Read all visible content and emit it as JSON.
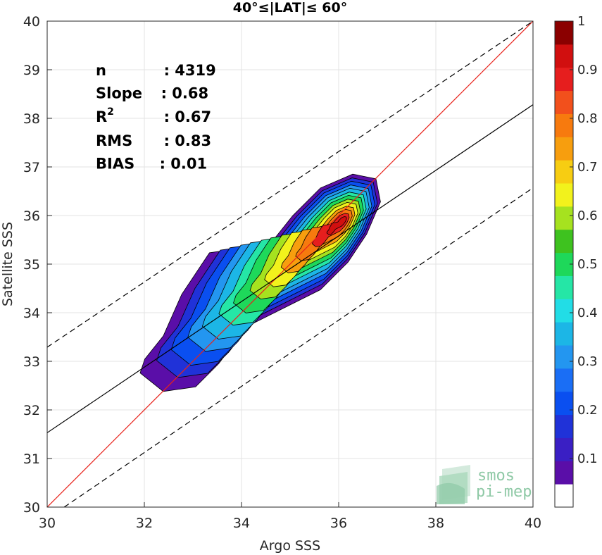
{
  "chart_data": {
    "type": "contour",
    "title": "40°≤|LAT|≤ 60°",
    "xlabel": "Argo SSS",
    "ylabel": "Satellite SSS",
    "xlim": [
      30,
      40
    ],
    "ylim": [
      30,
      40
    ],
    "x_ticks": [
      "30",
      "32",
      "34",
      "36",
      "38",
      "40"
    ],
    "y_ticks": [
      "30",
      "31",
      "32",
      "33",
      "34",
      "35",
      "36",
      "37",
      "38",
      "39",
      "40"
    ],
    "grid": true,
    "stats": [
      {
        "label": "n",
        "value": ": 4319"
      },
      {
        "label": "Slope",
        "value": ": 0.68"
      },
      {
        "label": "R",
        "sup": "2",
        "value": ": 0.67"
      },
      {
        "label": "RMS",
        "value": ": 0.83"
      },
      {
        "label": "BIAS",
        "value": ": 0.01"
      }
    ],
    "lines": [
      {
        "role": "one-to-one",
        "color": "#e8221b",
        "style": "solid",
        "x": [
          30,
          40
        ],
        "y": [
          30,
          40
        ]
      },
      {
        "role": "fit",
        "color": "#000000",
        "style": "solid",
        "x": [
          30,
          40
        ],
        "y": [
          31.53,
          38.28
        ]
      },
      {
        "role": "upper-bound",
        "color": "#000000",
        "style": "dashed",
        "x": [
          30,
          40
        ],
        "y": [
          33.29,
          40.0
        ]
      },
      {
        "role": "lower-bound",
        "color": "#000000",
        "style": "dashed",
        "x": [
          30.35,
          40
        ],
        "y": [
          30.0,
          36.57
        ]
      }
    ],
    "density_peak": {
      "x": 36.1,
      "y": 35.9
    },
    "colorbar": {
      "range": [
        0,
        1
      ],
      "ticks": [
        "0.1",
        "0.2",
        "0.3",
        "0.4",
        "0.5",
        "0.6",
        "0.7",
        "0.8",
        "0.9",
        "1"
      ],
      "colors": [
        "#ffffff",
        "#5a0ea8",
        "#3a1fc4",
        "#2032d8",
        "#0a4ff0",
        "#1a6ef5",
        "#2396f0",
        "#1cb6e6",
        "#22dde6",
        "#25e6a6",
        "#1ed85a",
        "#3ec21f",
        "#a6e21f",
        "#f2f21c",
        "#f7cd12",
        "#f79e0e",
        "#f77a0e",
        "#f2501c",
        "#e61e1e",
        "#d10f0f",
        "#8b0000"
      ]
    }
  },
  "logo": {
    "line1": "smos",
    "line2": "pi-mep"
  }
}
